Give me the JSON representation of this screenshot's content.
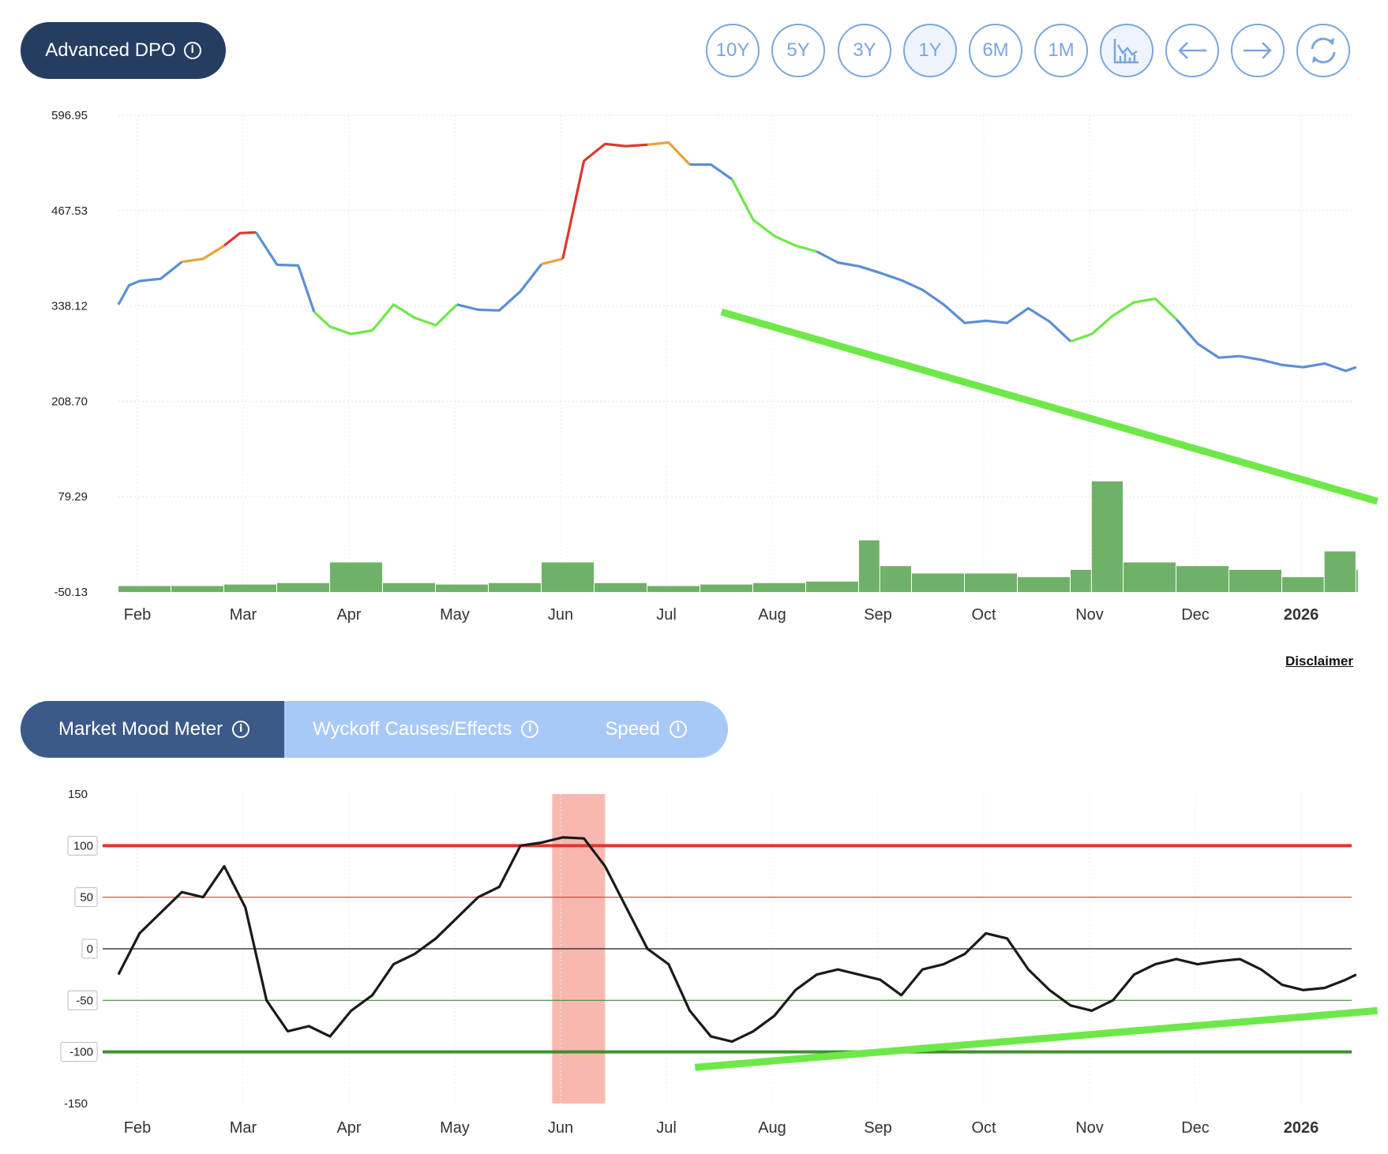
{
  "header": {
    "title": "Advanced DPO",
    "range_buttons": [
      "10Y",
      "5Y",
      "3Y",
      "1Y",
      "6M",
      "1M"
    ],
    "active_range": "1Y",
    "icon_buttons": [
      "chart-type-icon",
      "arrow-left-icon",
      "arrow-right-icon",
      "refresh-icon"
    ]
  },
  "disclaimer": "Disclaimer",
  "tabs": [
    {
      "label": "Market Mood Meter",
      "active": true
    },
    {
      "label": "Wyckoff Causes/Effects",
      "active": false
    },
    {
      "label": "Speed",
      "active": false
    }
  ],
  "colors": {
    "price_blue": "#5b8fd6",
    "green": "#6ee848",
    "orange": "#e8a23a",
    "red": "#e0362c",
    "volume": "#5fa858",
    "trend": "#6ee848",
    "mood_line": "#1a1a1a",
    "highlight": "#f8b8b0"
  },
  "chart_data": [
    {
      "type": "line",
      "title": "",
      "x_ticks": [
        "Feb",
        "Mar",
        "Apr",
        "May",
        "Jun",
        "Jul",
        "Aug",
        "Sep",
        "Oct",
        "Nov",
        "Dec",
        "2026"
      ],
      "y_ticks": [
        "596.95",
        "467.53",
        "338.12",
        "208.70",
        "79.29",
        "-50.13"
      ],
      "ylim": [
        -50.13,
        596.95
      ],
      "grid": true,
      "series": [
        {
          "x": [
            0.0,
            0.1,
            0.2,
            0.4,
            0.6,
            0.8,
            1.0,
            1.15,
            1.3,
            1.5,
            1.7,
            1.85,
            2.0,
            2.2,
            2.4,
            2.5,
            2.6,
            2.8,
            3.0,
            3.2,
            3.4,
            3.6,
            3.8,
            4.0,
            4.2,
            4.4,
            4.6,
            4.8,
            5.0,
            5.2,
            5.4,
            5.6,
            5.8,
            6.0,
            6.2,
            6.4,
            6.6,
            6.8,
            7.0,
            7.2,
            7.4,
            7.6,
            7.8,
            8.0,
            8.2,
            8.4,
            8.6,
            8.8,
            9.0,
            9.2,
            9.4,
            9.6,
            9.8,
            10.0,
            10.2,
            10.4,
            10.6,
            10.8,
            11.0,
            11.2,
            11.4,
            11.6,
            11.7
          ],
          "y": [
            340,
            366,
            372,
            375,
            398,
            402,
            420,
            437,
            438,
            394,
            393,
            330,
            310,
            300,
            305,
            322,
            340,
            322,
            312,
            340,
            333,
            332,
            358,
            395,
            402,
            535,
            558,
            555,
            557,
            560,
            530,
            530,
            510,
            455,
            433,
            420,
            412,
            397,
            392,
            383,
            373,
            360,
            340,
            315,
            318,
            315,
            335,
            317,
            290,
            300,
            325,
            343,
            348,
            320,
            287,
            268,
            270,
            265,
            258,
            255,
            260,
            250,
            255
          ],
          "color_segments": [
            {
              "from": 0.0,
              "to": 0.6,
              "color": "#5b8fd6"
            },
            {
              "from": 0.6,
              "to": 1.0,
              "color": "#e8a23a"
            },
            {
              "from": 1.0,
              "to": 1.3,
              "color": "#e0362c"
            },
            {
              "from": 1.3,
              "to": 1.85,
              "color": "#5b8fd6"
            },
            {
              "from": 1.85,
              "to": 3.2,
              "color": "#6ee848"
            },
            {
              "from": 3.2,
              "to": 4.0,
              "color": "#5b8fd6"
            },
            {
              "from": 4.0,
              "to": 4.2,
              "color": "#e8a23a"
            },
            {
              "from": 4.2,
              "to": 5.0,
              "color": "#e0362c"
            },
            {
              "from": 5.0,
              "to": 5.4,
              "color": "#e8a23a"
            },
            {
              "from": 5.4,
              "to": 5.8,
              "color": "#5b8fd6"
            },
            {
              "from": 5.8,
              "to": 6.6,
              "color": "#6ee848"
            },
            {
              "from": 6.6,
              "to": 9.0,
              "color": "#5b8fd6"
            },
            {
              "from": 9.0,
              "to": 10.0,
              "color": "#6ee848"
            },
            {
              "from": 10.0,
              "to": 11.7,
              "color": "#5b8fd6"
            }
          ]
        }
      ],
      "volume": {
        "x": [
          0.0,
          0.5,
          1.0,
          1.5,
          2.0,
          2.5,
          3.0,
          3.5,
          4.0,
          4.5,
          5.0,
          5.5,
          6.0,
          6.5,
          7.0,
          7.2,
          7.5,
          8.0,
          8.5,
          9.0,
          9.2,
          9.5,
          10.0,
          10.5,
          11.0,
          11.4,
          11.7
        ],
        "values": [
          -42,
          -42,
          -40,
          -38,
          -10,
          -38,
          -40,
          -38,
          -10,
          -38,
          -42,
          -40,
          -38,
          -36,
          20,
          -15,
          -25,
          -25,
          -30,
          -20,
          100,
          -10,
          -15,
          -20,
          -30,
          5,
          -20
        ]
      },
      "trendlines": [
        {
          "from": [
            5.7,
            330
          ],
          "to": [
            11.9,
            73
          ],
          "color": "#6ee848"
        }
      ]
    },
    {
      "type": "line",
      "title": "",
      "x_ticks": [
        "Feb",
        "Mar",
        "Apr",
        "May",
        "Jun",
        "Jul",
        "Aug",
        "Sep",
        "Oct",
        "Nov",
        "Dec",
        "2026"
      ],
      "y_ticks": [
        "150",
        "100",
        "50",
        "0",
        "-50",
        "-100",
        "-150"
      ],
      "ylim": [
        -150,
        150
      ],
      "reference_lines": [
        {
          "y": 100,
          "color": "#e0362c",
          "weight": "thick"
        },
        {
          "y": 50,
          "color": "#e0362c",
          "weight": "thin"
        },
        {
          "y": 0,
          "color": "#1a1a1a",
          "weight": "thin"
        },
        {
          "y": -50,
          "color": "#3f8f2e",
          "weight": "thin"
        },
        {
          "y": -100,
          "color": "#3f8f2e",
          "weight": "thick"
        }
      ],
      "highlight_band": {
        "from": 4.1,
        "to": 4.6,
        "color": "#f8b8b0"
      },
      "series": [
        {
          "x": [
            0.0,
            0.2,
            0.4,
            0.6,
            0.8,
            1.0,
            1.2,
            1.4,
            1.6,
            1.8,
            2.0,
            2.2,
            2.4,
            2.6,
            2.8,
            3.0,
            3.2,
            3.4,
            3.6,
            3.8,
            4.0,
            4.2,
            4.4,
            4.6,
            4.8,
            5.0,
            5.2,
            5.4,
            5.6,
            5.8,
            6.0,
            6.2,
            6.4,
            6.6,
            6.8,
            7.0,
            7.2,
            7.4,
            7.6,
            7.8,
            8.0,
            8.2,
            8.4,
            8.6,
            8.8,
            9.0,
            9.2,
            9.4,
            9.6,
            9.8,
            10.0,
            10.2,
            10.4,
            10.6,
            10.8,
            11.0,
            11.2,
            11.4,
            11.6,
            11.7
          ],
          "y": [
            -25,
            15,
            35,
            55,
            50,
            80,
            40,
            -50,
            -80,
            -75,
            -85,
            -60,
            -45,
            -15,
            -5,
            10,
            30,
            50,
            60,
            100,
            103,
            108,
            107,
            80,
            40,
            0,
            -15,
            -60,
            -85,
            -90,
            -80,
            -65,
            -40,
            -25,
            -20,
            -25,
            -30,
            -45,
            -20,
            -15,
            -5,
            15,
            10,
            -20,
            -40,
            -55,
            -60,
            -50,
            -25,
            -15,
            -10,
            -15,
            -12,
            -10,
            -20,
            -35,
            -40,
            -38,
            -30,
            -25
          ],
          "color": "#1a1a1a"
        }
      ],
      "trendlines": [
        {
          "from": [
            5.45,
            -115
          ],
          "to": [
            11.9,
            -60
          ],
          "color": "#6ee848"
        }
      ]
    }
  ]
}
